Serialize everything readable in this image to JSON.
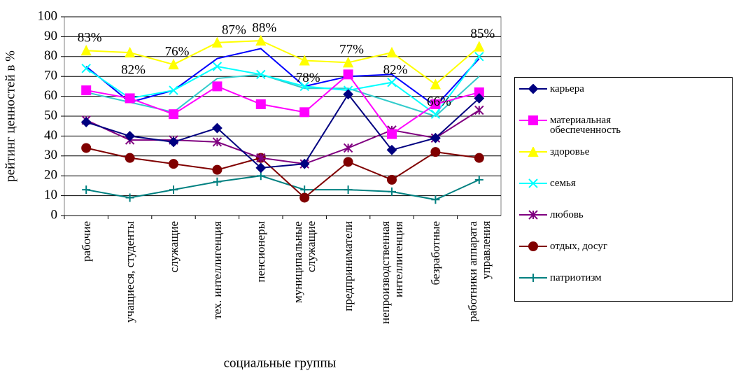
{
  "chart_data": {
    "type": "line",
    "x_label": "социальные группы",
    "y_label": "рейтинг ценностей в %",
    "categories": [
      "рабочие",
      "учащиеся, студенты",
      "служащие",
      "тех. интеллигенция",
      "пенсионеры",
      "муниципальные служащие",
      "предприниматели",
      "непроизводственная интеллигенция",
      "безработные",
      "работники аппарата управления"
    ],
    "ylim": [
      0,
      100
    ],
    "yticks": [
      0,
      10,
      20,
      30,
      40,
      50,
      60,
      70,
      80,
      90,
      100
    ],
    "grid": true,
    "series": [
      {
        "name": "карьера",
        "color": "#000080",
        "marker": "diamond",
        "values": [
          47,
          40,
          37,
          44,
          24,
          26,
          61,
          33,
          39,
          59
        ]
      },
      {
        "name": "материальная обеспеченность",
        "color": "#ff00ff",
        "marker": "square",
        "values": [
          63,
          59,
          51,
          65,
          56,
          52,
          71,
          41,
          56,
          62
        ]
      },
      {
        "name": "здоровье",
        "color": "#ffff00",
        "marker": "triangle",
        "values": [
          83,
          82,
          76,
          87,
          88,
          78,
          77,
          82,
          66,
          85
        ],
        "value_labels": [
          "83%",
          "82%",
          "76%",
          "87%",
          "88%",
          "78%",
          "77%",
          "82%",
          "66%",
          "85%"
        ]
      },
      {
        "name": "семья",
        "color": "#00ffff",
        "marker": "x",
        "values": [
          74,
          59,
          63,
          75,
          71,
          65,
          63,
          67,
          51,
          80
        ]
      },
      {
        "name": "любовь",
        "color": "#800080",
        "marker": "star",
        "values": [
          48,
          38,
          38,
          37,
          29,
          26,
          34,
          43,
          39,
          53
        ]
      },
      {
        "name": "отдых, досуг",
        "color": "#800000",
        "marker": "circle",
        "values": [
          34,
          29,
          26,
          23,
          29,
          9,
          27,
          18,
          32,
          29
        ]
      },
      {
        "name": "патриотизм",
        "color": "#008080",
        "marker": "plus",
        "values": [
          13,
          9,
          13,
          17,
          20,
          13,
          13,
          12,
          8,
          18
        ]
      },
      {
        "color": "#0000ff",
        "values": [
          75,
          57,
          63,
          79,
          84,
          65,
          70,
          71,
          55,
          79
        ]
      },
      {
        "color": "#33cccc",
        "values": [
          62,
          57,
          52,
          69,
          71,
          64,
          64,
          57,
          50,
          70
        ]
      }
    ]
  }
}
